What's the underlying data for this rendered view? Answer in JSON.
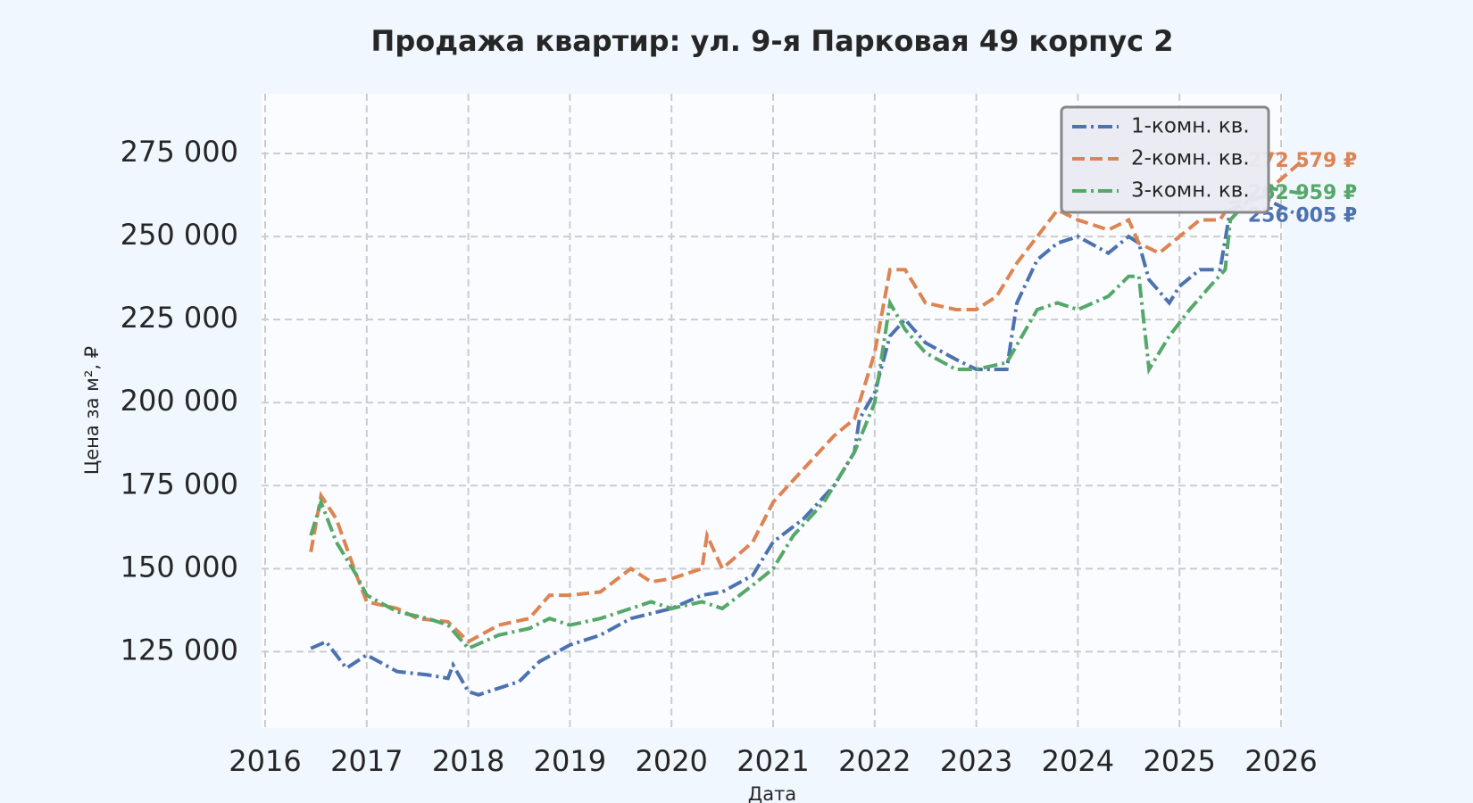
{
  "chart_data": {
    "type": "line",
    "title": "Продажа квартир: ул. 9-я Парковая 49 корпус 2",
    "xlabel": "Дата",
    "ylabel": "Цена за м², ₽",
    "xlim": [
      2016,
      2026
    ],
    "xticks": [
      2016,
      2017,
      2018,
      2019,
      2020,
      2021,
      2022,
      2023,
      2024,
      2025,
      2026
    ],
    "ylim": [
      102000,
      293000
    ],
    "yticks": [
      {
        "value": 125000,
        "label": "125 000"
      },
      {
        "value": 150000,
        "label": "150 000"
      },
      {
        "value": 175000,
        "label": "175 000"
      },
      {
        "value": 200000,
        "label": "200 000"
      },
      {
        "value": 225000,
        "label": "225 000"
      },
      {
        "value": 250000,
        "label": "250 000"
      },
      {
        "value": 275000,
        "label": "275 000"
      }
    ],
    "grid": true,
    "legend": "upper right",
    "series": [
      {
        "name": "1-комн. кв.",
        "color": "#4c72b0",
        "dash": "dashdot",
        "x": [
          2016.45,
          2016.6,
          2016.8,
          2017.0,
          2017.3,
          2017.6,
          2017.8,
          2017.85,
          2018.0,
          2018.1,
          2018.3,
          2018.5,
          2018.7,
          2019.0,
          2019.3,
          2019.6,
          2020.0,
          2020.3,
          2020.5,
          2020.8,
          2021.0,
          2021.3,
          2021.6,
          2021.8,
          2021.85,
          2022.0,
          2022.15,
          2022.3,
          2022.5,
          2022.8,
          2023.0,
          2023.3,
          2023.4,
          2023.6,
          2023.8,
          2024.0,
          2024.3,
          2024.5,
          2024.6,
          2024.7,
          2024.9,
          2025.0,
          2025.2,
          2025.4,
          2025.5,
          2025.8,
          2026.2
        ],
        "values": [
          126000,
          128000,
          120000,
          124000,
          119000,
          118000,
          117000,
          121000,
          113000,
          112000,
          114000,
          116000,
          122000,
          127000,
          130000,
          135000,
          138000,
          142000,
          143000,
          148000,
          158000,
          165000,
          175000,
          185000,
          195000,
          203000,
          220000,
          225000,
          218000,
          213000,
          210000,
          210000,
          230000,
          243000,
          248000,
          250000,
          245000,
          250000,
          248000,
          237000,
          230000,
          235000,
          240000,
          240000,
          258000,
          262000,
          256005
        ],
        "value_labels": [
          null,
          null,
          null,
          null,
          null,
          null,
          null,
          null,
          null,
          null,
          null,
          null,
          null,
          null,
          null,
          null,
          null,
          null,
          null,
          null,
          null,
          null,
          null,
          null,
          null,
          null,
          null,
          null,
          null,
          null,
          null,
          null,
          null,
          null,
          null,
          null,
          null,
          null,
          null,
          null,
          null,
          null,
          null,
          null,
          null,
          null,
          "256 005 ₽"
        ]
      },
      {
        "name": "2-комн. кв.",
        "color": "#dd8452",
        "dash": "dashed",
        "x": [
          2016.45,
          2016.55,
          2016.7,
          2016.9,
          2017.0,
          2017.3,
          2017.5,
          2017.8,
          2018.0,
          2018.3,
          2018.6,
          2018.8,
          2019.0,
          2019.3,
          2019.6,
          2019.8,
          2020.0,
          2020.3,
          2020.35,
          2020.5,
          2020.8,
          2021.0,
          2021.3,
          2021.6,
          2021.8,
          2022.0,
          2022.15,
          2022.3,
          2022.5,
          2022.8,
          2023.0,
          2023.2,
          2023.4,
          2023.6,
          2023.8,
          2024.0,
          2024.3,
          2024.5,
          2024.6,
          2024.8,
          2025.0,
          2025.2,
          2025.4,
          2025.5,
          2025.8,
          2026.2
        ],
        "values": [
          155000,
          172000,
          165000,
          148000,
          140000,
          138000,
          135000,
          134000,
          128000,
          133000,
          135000,
          142000,
          142000,
          143000,
          150000,
          146000,
          147000,
          150000,
          160000,
          150000,
          158000,
          170000,
          180000,
          190000,
          195000,
          215000,
          240000,
          240000,
          230000,
          228000,
          228000,
          232000,
          242000,
          250000,
          258000,
          255000,
          252000,
          255000,
          248000,
          245000,
          250000,
          255000,
          255000,
          260000,
          262000,
          272579
        ],
        "value_labels": [
          null,
          null,
          null,
          null,
          null,
          null,
          null,
          null,
          null,
          null,
          null,
          null,
          null,
          null,
          null,
          null,
          null,
          null,
          null,
          null,
          null,
          null,
          null,
          null,
          null,
          null,
          null,
          null,
          null,
          null,
          null,
          null,
          null,
          null,
          null,
          null,
          null,
          null,
          null,
          null,
          null,
          null,
          null,
          null,
          null,
          "272 579 ₽"
        ]
      },
      {
        "name": "3-комн. кв.",
        "color": "#55a868",
        "dash": "dashdot",
        "x": [
          2016.45,
          2016.55,
          2016.7,
          2016.9,
          2017.0,
          2017.3,
          2017.6,
          2017.8,
          2018.0,
          2018.3,
          2018.6,
          2018.8,
          2019.0,
          2019.3,
          2019.6,
          2019.8,
          2020.0,
          2020.3,
          2020.5,
          2020.8,
          2021.0,
          2021.2,
          2021.5,
          2021.8,
          2022.0,
          2022.15,
          2022.3,
          2022.5,
          2022.8,
          2023.0,
          2023.3,
          2023.45,
          2023.6,
          2023.8,
          2024.0,
          2024.3,
          2024.5,
          2024.6,
          2024.7,
          2024.9,
          2025.1,
          2025.3,
          2025.45,
          2025.5,
          2025.8,
          2026.2
        ],
        "values": [
          160000,
          170000,
          158000,
          148000,
          142000,
          137000,
          135000,
          133000,
          126000,
          130000,
          132000,
          135000,
          133000,
          135000,
          138000,
          140000,
          138000,
          140000,
          138000,
          145000,
          150000,
          160000,
          170000,
          185000,
          200000,
          230000,
          222000,
          215000,
          210000,
          210000,
          212000,
          220000,
          228000,
          230000,
          228000,
          232000,
          238000,
          238000,
          210000,
          220000,
          228000,
          235000,
          240000,
          255000,
          265000,
          262959
        ],
        "value_labels": [
          null,
          null,
          null,
          null,
          null,
          null,
          null,
          null,
          null,
          null,
          null,
          null,
          null,
          null,
          null,
          null,
          null,
          null,
          null,
          null,
          null,
          null,
          null,
          null,
          null,
          null,
          null,
          null,
          null,
          null,
          null,
          null,
          null,
          null,
          null,
          null,
          null,
          null,
          null,
          null,
          null,
          null,
          null,
          null,
          null,
          "262 959 ₽"
        ]
      }
    ]
  }
}
